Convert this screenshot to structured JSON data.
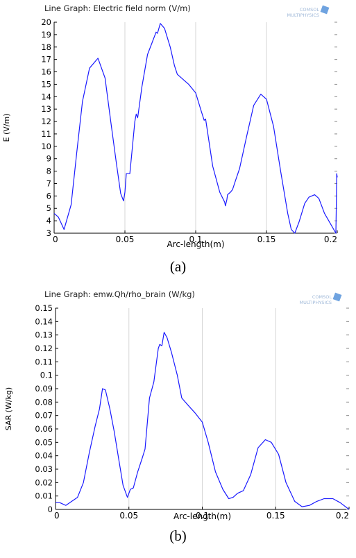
{
  "figure": {
    "caption_a": "(a)",
    "caption_b": "(b)",
    "watermark_line1": "COMSOL",
    "watermark_line2": "MULTIPHYSICS"
  },
  "chart_data": [
    {
      "type": "line",
      "title": "Line Graph: Electric field norm (V/m)",
      "xlabel": "Arc-length(m)",
      "ylabel": "E (V/m)",
      "xlim": [
        0,
        0.2
      ],
      "ylim": [
        3,
        20
      ],
      "xticks": [
        0,
        0.05,
        0.1,
        0.15,
        0.2
      ],
      "xtick_labels": [
        "0",
        "0.05",
        "0.1",
        "0.15",
        "0.2"
      ],
      "yticks": [
        3,
        4,
        5,
        6,
        7,
        8,
        9,
        10,
        11,
        12,
        13,
        14,
        15,
        16,
        17,
        18,
        19,
        20
      ],
      "ytick_labels": [
        "3",
        "4",
        "5",
        "6",
        "7",
        "8",
        "9",
        "10",
        "11",
        "12",
        "13",
        "14",
        "15",
        "16",
        "17",
        "18",
        "19",
        "20"
      ],
      "grid": "vertical-at-major-x",
      "series_color": "#1a1aff",
      "series": [
        {
          "x": [
            0,
            0.003,
            0.007,
            0.012,
            0.016,
            0.02,
            0.025,
            0.031,
            0.036,
            0.04,
            0.044,
            0.047,
            0.049,
            0.05,
            0.051,
            0.0535,
            0.055,
            0.057,
            0.058,
            0.059,
            0.062,
            0.066,
            0.069,
            0.072,
            0.073,
            0.075,
            0.078,
            0.082,
            0.085,
            0.087,
            0.095,
            0.1,
            0.104,
            0.106,
            0.107,
            0.112,
            0.117,
            0.1205,
            0.121,
            0.122,
            0.1225,
            0.1245,
            0.126,
            0.128,
            0.131,
            0.136,
            0.141,
            0.146,
            0.15,
            0.155,
            0.16,
            0.165,
            0.1675,
            0.17,
            0.173,
            0.177,
            0.18,
            0.184,
            0.187,
            0.191,
            0.195,
            0.199,
            0.1993,
            0.1996,
            0.2
          ],
          "y": [
            4.6,
            4.3,
            3.3,
            5.3,
            9.5,
            13.6,
            16.3,
            17.1,
            15.5,
            12.0,
            8.6,
            6.2,
            5.6,
            6.3,
            7.8,
            7.8,
            9.6,
            12.0,
            12.6,
            12.3,
            14.8,
            17.4,
            18.3,
            19.2,
            19.1,
            19.9,
            19.5,
            18.0,
            16.5,
            15.8,
            15.0,
            14.3,
            12.8,
            12.1,
            12.2,
            8.4,
            6.3,
            5.5,
            5.2,
            5.7,
            6.1,
            6.3,
            6.5,
            7.2,
            8.2,
            10.8,
            13.3,
            14.2,
            13.8,
            11.6,
            8.0,
            4.6,
            3.3,
            3.0,
            3.9,
            5.4,
            5.9,
            6.1,
            5.8,
            4.6,
            3.8,
            3.0,
            5.2,
            7.8,
            7.5
          ]
        }
      ]
    },
    {
      "type": "line",
      "title": "Line Graph: emw.Qh/rho_brain (W/kg)",
      "xlabel": "Arc-length(m)",
      "ylabel": "SAR (W/kg)",
      "xlim": [
        0,
        0.2
      ],
      "ylim": [
        0,
        0.15
      ],
      "xticks": [
        0,
        0.05,
        0.1,
        0.15,
        0.2
      ],
      "xtick_labels": [
        "0",
        "0.05",
        "0.1",
        "0.15",
        "0.2"
      ],
      "yticks": [
        0,
        0.01,
        0.02,
        0.03,
        0.04,
        0.05,
        0.06,
        0.07,
        0.08,
        0.09,
        0.1,
        0.11,
        0.12,
        0.13,
        0.14,
        0.15
      ],
      "ytick_labels": [
        "0",
        "0.01",
        "0.02",
        "0.03",
        "0.04",
        "0.05",
        "0.06",
        "0.07",
        "0.08",
        "0.09",
        "0.1",
        "0.11",
        "0.12",
        "0.13",
        "0.14",
        "0.15"
      ],
      "grid": "vertical-at-major-x",
      "series_color": "#1a1aff",
      "series": [
        {
          "x": [
            0,
            0.003,
            0.007,
            0.011,
            0.015,
            0.019,
            0.023,
            0.027,
            0.03,
            0.032,
            0.034,
            0.037,
            0.04,
            0.043,
            0.046,
            0.049,
            0.051,
            0.053,
            0.056,
            0.059,
            0.061,
            0.064,
            0.067,
            0.07,
            0.071,
            0.0725,
            0.074,
            0.076,
            0.079,
            0.083,
            0.086,
            0.09,
            0.095,
            0.1,
            0.104,
            0.109,
            0.114,
            0.118,
            0.121,
            0.124,
            0.128,
            0.133,
            0.138,
            0.143,
            0.147,
            0.152,
            0.157,
            0.163,
            0.168,
            0.173,
            0.178,
            0.183,
            0.189,
            0.194,
            0.2
          ],
          "y": [
            0.005,
            0.005,
            0.003,
            0.006,
            0.009,
            0.02,
            0.042,
            0.062,
            0.075,
            0.09,
            0.089,
            0.075,
            0.058,
            0.038,
            0.018,
            0.009,
            0.015,
            0.016,
            0.028,
            0.038,
            0.045,
            0.083,
            0.095,
            0.12,
            0.123,
            0.122,
            0.132,
            0.128,
            0.117,
            0.1,
            0.083,
            0.078,
            0.072,
            0.065,
            0.05,
            0.028,
            0.015,
            0.008,
            0.009,
            0.012,
            0.014,
            0.026,
            0.046,
            0.052,
            0.05,
            0.041,
            0.02,
            0.006,
            0.002,
            0.003,
            0.006,
            0.008,
            0.008,
            0.005,
            0
          ]
        }
      ]
    }
  ]
}
